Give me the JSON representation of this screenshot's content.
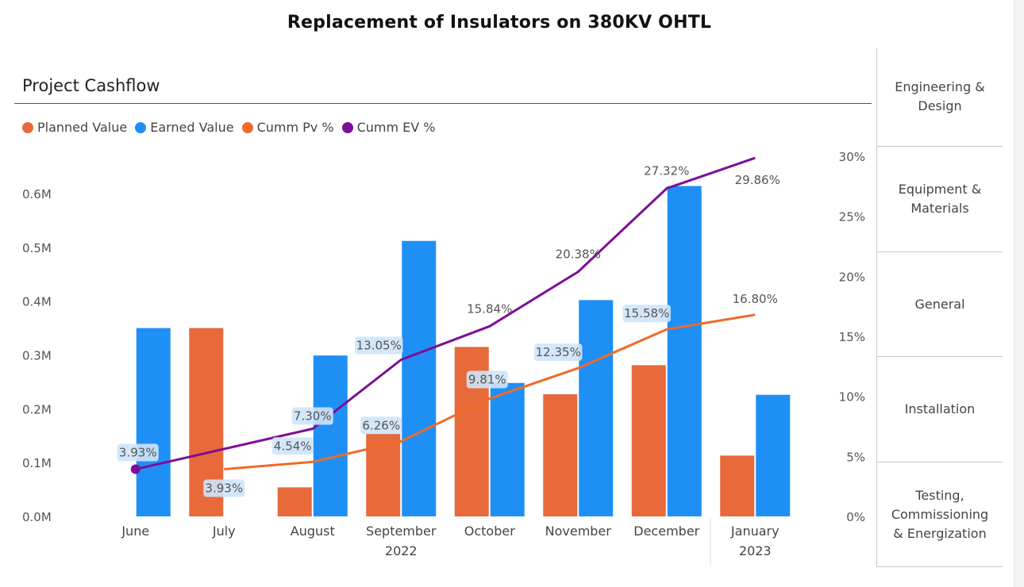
{
  "page_title": "Replacement of Insulators on 380KV OHTL",
  "chart_data": {
    "type": "bar",
    "title": "Project Cashflow",
    "categories": [
      "June",
      "July",
      "August",
      "September\n2022",
      "October",
      "November",
      "December",
      "January\n2023"
    ],
    "series": [
      {
        "name": "Planned Value",
        "kind": "bar",
        "axis": "left",
        "color": "#E8693A",
        "values": [
          0,
          0.35,
          0.054,
          0.154,
          0.315,
          0.227,
          0.281,
          0.113
        ]
      },
      {
        "name": "Earned Value",
        "kind": "bar",
        "axis": "left",
        "color": "#1E90F5",
        "values": [
          0.35,
          0,
          0.299,
          0.512,
          0.248,
          0.402,
          0.614,
          0.226
        ]
      },
      {
        "name": "Cumm Pv %",
        "kind": "line",
        "axis": "right",
        "color": "#F06A2A",
        "values": [
          null,
          3.93,
          4.54,
          6.26,
          9.81,
          12.35,
          15.58,
          16.8
        ],
        "labels": [
          "",
          "3.93%",
          "4.54%",
          "6.26%",
          "9.81%",
          "12.35%",
          "15.58%",
          "16.80%"
        ]
      },
      {
        "name": "Cumm EV %",
        "kind": "line",
        "axis": "right",
        "color": "#7E0E98",
        "values": [
          3.93,
          null,
          7.3,
          13.05,
          15.84,
          20.38,
          27.32,
          29.86
        ],
        "labels": [
          "3.93%",
          "",
          "7.30%",
          "13.05%",
          "15.84%",
          "20.38%",
          "27.32%",
          "29.86%"
        ]
      }
    ],
    "y_left": {
      "ticks": [
        "0.0M",
        "0.1M",
        "0.2M",
        "0.3M",
        "0.4M",
        "0.5M",
        "0.6M"
      ],
      "min": 0,
      "max": 0.6
    },
    "y_right": {
      "ticks": [
        "0%",
        "5%",
        "10%",
        "15%",
        "20%",
        "25%",
        "30%"
      ],
      "min": 0,
      "max": 30
    },
    "xlabel": "",
    "ylabel": "",
    "grid": false,
    "legend_position": "top-left"
  },
  "slicer": {
    "items": [
      "Engineering &\nDesign",
      "Equipment &\nMaterials",
      "General",
      "Installation",
      "Testing,\nCommissioning\n& Energization"
    ]
  }
}
